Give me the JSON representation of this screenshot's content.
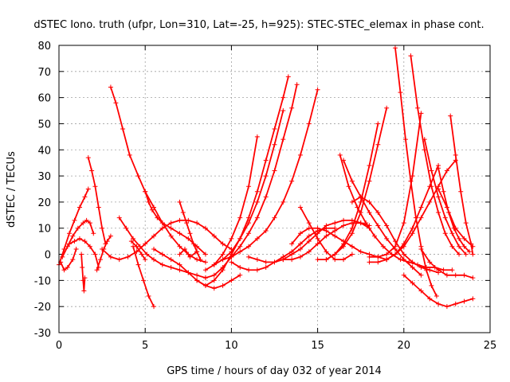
{
  "chart_data": {
    "type": "scatter",
    "title": "dSTEC Iono. truth (ufpr, Lon=310, Lat=-25, h=925): STEC-STEC_elemax in phase cont.",
    "xlabel": "GPS time / hours of day 032 of year 2014",
    "ylabel": "dSTEC  / TECUs",
    "xlim": [
      0,
      25
    ],
    "ylim": [
      -30,
      80
    ],
    "xticks": [
      0,
      5,
      10,
      15,
      20,
      25
    ],
    "yticks": [
      -30,
      -20,
      -10,
      0,
      10,
      20,
      30,
      40,
      50,
      60,
      70,
      80
    ],
    "xtick_labels": [
      "0",
      "5",
      "10",
      "15",
      "20",
      "25"
    ],
    "ytick_labels": [
      "-30",
      "-20",
      "-10",
      "0",
      "10",
      "20",
      "30",
      "40",
      "50",
      "60",
      "70",
      "80"
    ],
    "grid": true,
    "marker": "plus",
    "color": "#ff0000",
    "series": [
      {
        "name": "arc01",
        "x": [
          0.0,
          0.3,
          0.6,
          0.9,
          1.2,
          1.5,
          1.7
        ],
        "y": [
          -4,
          2,
          8,
          13,
          18,
          22,
          25
        ]
      },
      {
        "name": "arc02",
        "x": [
          0.1,
          0.3,
          0.5,
          0.8,
          1.0
        ],
        "y": [
          -3,
          -6,
          -5,
          -2,
          2
        ]
      },
      {
        "name": "arc03",
        "x": [
          0.2,
          0.5,
          0.8,
          1.1,
          1.4,
          1.6,
          1.8,
          2.0
        ],
        "y": [
          -1,
          3,
          7,
          10,
          12,
          13,
          12,
          8
        ]
      },
      {
        "name": "arc04",
        "x": [
          1.3,
          1.35,
          1.4,
          1.45,
          1.5
        ],
        "y": [
          0,
          -5,
          -10,
          -14,
          -9
        ]
      },
      {
        "name": "arc05",
        "x": [
          1.7,
          1.9,
          2.1,
          2.3,
          2.5,
          2.7
        ],
        "y": [
          37,
          32,
          26,
          18,
          10,
          4
        ]
      },
      {
        "name": "arc06",
        "x": [
          0.6,
          0.9,
          1.2,
          1.5,
          1.8,
          2.1,
          2.3
        ],
        "y": [
          4,
          5,
          6,
          5,
          3,
          0,
          -5
        ]
      },
      {
        "name": "arc07",
        "x": [
          2.2,
          2.4,
          2.6,
          2.8,
          3.0
        ],
        "y": [
          -6,
          -2,
          2,
          5,
          7
        ]
      },
      {
        "name": "arc08",
        "x": [
          3.0,
          3.3,
          3.7,
          4.1,
          4.6,
          5.0,
          5.5,
          6.0,
          6.5,
          7.0,
          7.5,
          8.0,
          8.5
        ],
        "y": [
          64,
          58,
          48,
          38,
          30,
          24,
          18,
          12,
          7,
          3,
          0,
          -2,
          -3
        ]
      },
      {
        "name": "arc09",
        "x": [
          3.5,
          3.9,
          4.3,
          4.7,
          5.1,
          5.5,
          6.0,
          6.5,
          7.0,
          7.5,
          8.0,
          8.5
        ],
        "y": [
          14,
          10,
          6,
          3,
          0,
          -2,
          -4,
          -5,
          -6,
          -7,
          -8,
          -9
        ]
      },
      {
        "name": "arc10",
        "x": [
          4.3,
          4.6,
          4.9,
          5.2,
          5.5
        ],
        "y": [
          3,
          -4,
          -10,
          -16,
          -20
        ]
      },
      {
        "name": "arc11",
        "x": [
          4.2,
          4.5,
          4.8,
          5.0
        ],
        "y": [
          5,
          3,
          0,
          -2
        ]
      },
      {
        "name": "arc12",
        "x": [
          5.0,
          5.2,
          5.4,
          5.7,
          6.0,
          6.5,
          7.0,
          7.5,
          8.0,
          8.5
        ],
        "y": [
          24,
          20,
          17,
          14,
          12,
          10,
          8,
          6,
          3,
          0
        ]
      },
      {
        "name": "arc13",
        "x": [
          2.5,
          3.0,
          3.5,
          4.0,
          4.5,
          5.0,
          5.5,
          6.0,
          6.5,
          7.0,
          7.5,
          8.0,
          8.5,
          9.0,
          9.5,
          10.0
        ],
        "y": [
          2,
          -1,
          -2,
          -1,
          1,
          4,
          7,
          10,
          12,
          13,
          13,
          12,
          10,
          7,
          4,
          2
        ]
      },
      {
        "name": "arc14",
        "x": [
          5.5,
          6.0,
          6.5,
          7.0,
          7.5,
          8.0,
          8.5,
          9.0,
          9.5,
          10.0,
          10.5
        ],
        "y": [
          2,
          0,
          -2,
          -4,
          -7,
          -10,
          -12,
          -13,
          -12,
          -10,
          -8
        ]
      },
      {
        "name": "arc15",
        "x": [
          7.0,
          7.2,
          7.4,
          7.6,
          7.8,
          8.0,
          8.2
        ],
        "y": [
          20,
          16,
          12,
          8,
          4,
          1,
          -2
        ]
      },
      {
        "name": "arc16",
        "x": [
          7.0,
          7.3,
          7.6,
          8.0
        ],
        "y": [
          0,
          2,
          -1,
          1
        ]
      },
      {
        "name": "arc17",
        "x": [
          8.0,
          8.5,
          9.0,
          9.5,
          10.0,
          10.5,
          11.0,
          11.5,
          12.0,
          12.5,
          13.0,
          13.3
        ],
        "y": [
          -10,
          -12,
          -10,
          -6,
          0,
          6,
          14,
          24,
          36,
          48,
          60,
          68
        ]
      },
      {
        "name": "arc18",
        "x": [
          8.5,
          9.0,
          9.5,
          10.0,
          10.5,
          11.0,
          11.5,
          12.0,
          12.5,
          13.0,
          13.5,
          13.8
        ],
        "y": [
          -9,
          -8,
          -5,
          -1,
          3,
          8,
          14,
          22,
          32,
          44,
          56,
          65
        ]
      },
      {
        "name": "arc19",
        "x": [
          8.5,
          9.0,
          9.5,
          10.0,
          10.5,
          11.0,
          11.5
        ],
        "y": [
          -6,
          -4,
          0,
          6,
          14,
          26,
          45
        ]
      },
      {
        "name": "arc20",
        "x": [
          9.0,
          9.5,
          10.0,
          10.5,
          11.0,
          11.5,
          12.0,
          12.5,
          13.0
        ],
        "y": [
          -4,
          -2,
          1,
          6,
          12,
          20,
          30,
          42,
          55
        ]
      },
      {
        "name": "arc21",
        "x": [
          9.5,
          10.0,
          10.5,
          11.0,
          11.5,
          12.0,
          12.5,
          13.0,
          13.5,
          14.0,
          14.5,
          15.0
        ],
        "y": [
          -2,
          -1,
          1,
          3,
          6,
          9,
          14,
          20,
          28,
          38,
          50,
          63
        ]
      },
      {
        "name": "arc22",
        "x": [
          10.0,
          10.5,
          11.0,
          11.5,
          12.0,
          12.5,
          13.0,
          13.5,
          14.0,
          14.5,
          15.0,
          15.5,
          16.0
        ],
        "y": [
          -3,
          -5,
          -6,
          -6,
          -5,
          -3,
          -1,
          1,
          4,
          7,
          9,
          10,
          10
        ]
      },
      {
        "name": "arc23",
        "x": [
          11.0,
          11.5,
          12.0,
          12.5,
          13.0,
          13.5,
          14.0,
          14.5,
          15.0,
          15.5,
          16.0,
          16.5,
          17.0,
          17.5,
          18.0
        ],
        "y": [
          -1,
          -2,
          -3,
          -3,
          -2,
          0,
          2,
          5,
          8,
          11,
          12,
          13,
          13,
          12,
          10
        ]
      },
      {
        "name": "arc24",
        "x": [
          13.0,
          13.5,
          14.0,
          14.5,
          15.0,
          15.5,
          16.0,
          16.5,
          17.0,
          17.5,
          18.0
        ],
        "y": [
          -2,
          -2,
          -1,
          1,
          4,
          7,
          9,
          11,
          12,
          12,
          11
        ]
      },
      {
        "name": "arc25",
        "x": [
          14.0,
          14.5,
          15.0,
          15.5,
          16.0,
          16.5,
          17.0
        ],
        "y": [
          18,
          12,
          6,
          1,
          -2,
          -2,
          0
        ]
      },
      {
        "name": "arc26",
        "x": [
          13.5,
          14.0,
          14.5,
          15.0,
          15.5,
          16.0,
          16.5,
          17.0,
          17.5,
          18.0,
          18.5,
          19.0
        ],
        "y": [
          4,
          8,
          10,
          10,
          9,
          7,
          5,
          3,
          1,
          0,
          -1,
          -2
        ]
      },
      {
        "name": "arc27",
        "x": [
          15.0,
          15.5,
          16.0,
          16.5,
          17.0,
          17.5,
          18.0,
          18.5,
          19.0
        ],
        "y": [
          -2,
          -2,
          0,
          3,
          8,
          16,
          28,
          42,
          56
        ]
      },
      {
        "name": "arc28",
        "x": [
          15.5,
          16.0,
          16.5,
          17.0,
          17.5,
          18.0,
          18.5
        ],
        "y": [
          -2,
          0,
          4,
          10,
          20,
          34,
          50
        ]
      },
      {
        "name": "arc29",
        "x": [
          16.3,
          16.8,
          17.3,
          17.8,
          18.3,
          18.8,
          19.3,
          19.8,
          20.3,
          20.8,
          21.3,
          21.8,
          22.3,
          22.8
        ],
        "y": [
          38,
          26,
          18,
          12,
          7,
          3,
          0,
          -2,
          -3,
          -4,
          -5,
          -5,
          -6,
          -6
        ]
      },
      {
        "name": "arc30",
        "x": [
          16.5,
          17.0,
          17.5,
          18.0,
          18.5,
          19.0,
          19.5,
          20.0,
          20.5,
          21.0
        ],
        "y": [
          36,
          28,
          22,
          16,
          11,
          6,
          2,
          -2,
          -5,
          -8
        ]
      },
      {
        "name": "arc31",
        "x": [
          17.0,
          17.5,
          18.0,
          18.5,
          19.0,
          19.5,
          20.0,
          20.5,
          21.0,
          21.5,
          22.0
        ],
        "y": [
          20,
          22,
          20,
          16,
          11,
          5,
          0,
          -3,
          -5,
          -6,
          -7
        ]
      },
      {
        "name": "arc32",
        "x": [
          18.0,
          18.5,
          19.0,
          19.5,
          20.0,
          20.5,
          21.0
        ],
        "y": [
          -1,
          -1,
          0,
          3,
          12,
          30,
          54
        ]
      },
      {
        "name": "arc33",
        "x": [
          18.0,
          18.5,
          19.0,
          19.5,
          20.0,
          20.5,
          21.0,
          21.5,
          22.0,
          22.5,
          23.0
        ],
        "y": [
          -3,
          -3,
          -2,
          0,
          3,
          8,
          14,
          20,
          26,
          32,
          36
        ]
      },
      {
        "name": "arc34",
        "x": [
          19.5,
          19.8,
          20.1,
          20.4,
          20.7,
          21.0,
          21.3,
          21.6,
          21.9
        ],
        "y": [
          79,
          62,
          44,
          28,
          14,
          3,
          -6,
          -12,
          -16
        ]
      },
      {
        "name": "arc35",
        "x": [
          20.4,
          20.8,
          21.2,
          21.6,
          22.0,
          22.4,
          22.8,
          23.2
        ],
        "y": [
          76,
          56,
          40,
          26,
          16,
          8,
          3,
          0
        ]
      },
      {
        "name": "arc36",
        "x": [
          21.2,
          21.6,
          22.0,
          22.4,
          22.8,
          23.2,
          23.6
        ],
        "y": [
          44,
          32,
          22,
          14,
          8,
          3,
          0
        ]
      },
      {
        "name": "arc37",
        "x": [
          20.0,
          20.5,
          21.0,
          21.5,
          22.0,
          22.5,
          23.0,
          23.5,
          24.0
        ],
        "y": [
          -8,
          -11,
          -14,
          -17,
          -19,
          -20,
          -19,
          -18,
          -17
        ]
      },
      {
        "name": "arc38",
        "x": [
          22.0,
          22.3,
          22.6,
          22.9,
          23.2,
          23.5,
          23.8
        ],
        "y": [
          33,
          24,
          16,
          10,
          6,
          3,
          1
        ]
      },
      {
        "name": "arc39",
        "x": [
          22.7,
          23.0,
          23.3,
          23.6,
          23.9,
          24.0
        ],
        "y": [
          53,
          38,
          24,
          12,
          4,
          0
        ]
      },
      {
        "name": "arc40",
        "x": [
          22.0,
          22.5,
          23.0,
          23.5,
          24.0
        ],
        "y": [
          25,
          18,
          10,
          6,
          3
        ]
      },
      {
        "name": "arc41",
        "x": [
          21.0,
          21.5,
          22.0,
          22.5,
          23.0,
          23.5,
          24.0
        ],
        "y": [
          2,
          -3,
          -6,
          -8,
          -8,
          -8,
          -9
        ]
      },
      {
        "name": "arc42",
        "x": [
          19.0,
          19.5,
          20.0,
          20.5,
          21.0,
          21.5,
          22.0
        ],
        "y": [
          -2,
          0,
          4,
          10,
          18,
          26,
          34
        ]
      }
    ]
  }
}
